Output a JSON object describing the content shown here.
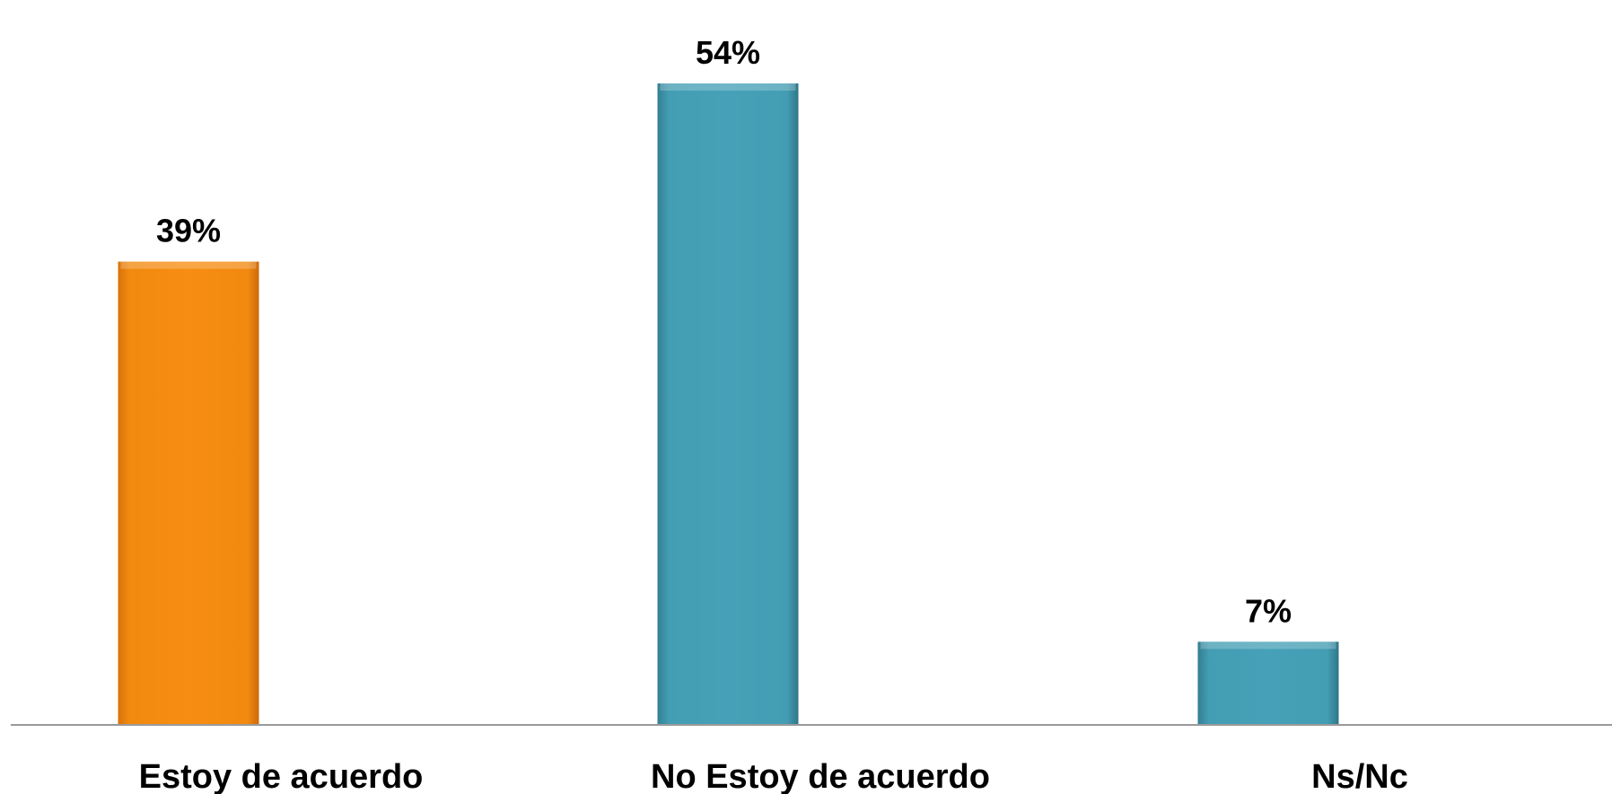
{
  "chart_data": {
    "type": "bar",
    "categories": [
      "Estoy de acuerdo",
      "No Estoy de acuerdo",
      "Ns/Nc"
    ],
    "values": [
      39,
      54,
      7
    ],
    "value_labels": [
      "39%",
      "54%",
      "7%"
    ],
    "colors": [
      "#F5890F",
      "#449FB6",
      "#449FB6"
    ],
    "unit": "%",
    "ylim": [
      0,
      54
    ],
    "grid": false,
    "legend": "none",
    "title": "",
    "xlabel": "",
    "ylabel": ""
  }
}
